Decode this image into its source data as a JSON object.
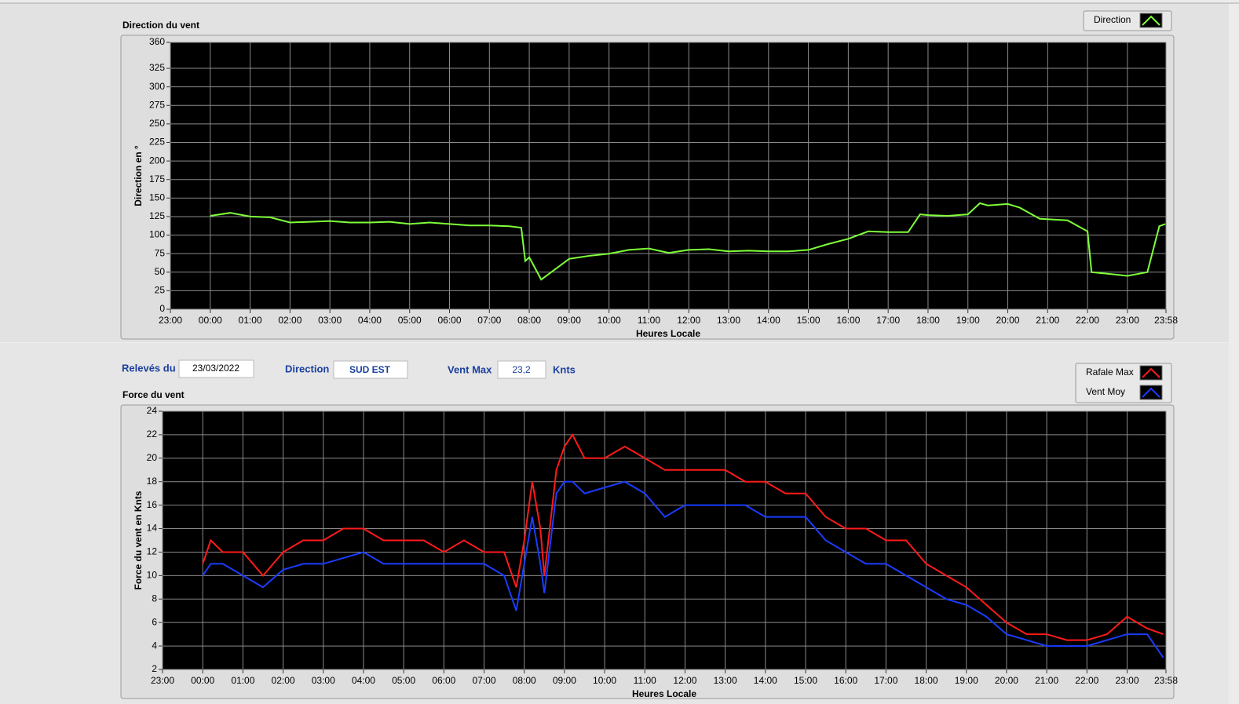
{
  "chart_data": [
    {
      "type": "line",
      "title": "Direction du vent",
      "xlabel": "Heures Locale",
      "ylabel": "Direction en °",
      "x": [
        0,
        0.5,
        1,
        1.5,
        2,
        2.5,
        3,
        3.5,
        4,
        4.5,
        5,
        5.5,
        6,
        6.5,
        7,
        7.5,
        7.8,
        7.9,
        8,
        8.3,
        8.5,
        9,
        9.5,
        10,
        10.5,
        11,
        11.5,
        12,
        12.5,
        13,
        13.5,
        14,
        14.5,
        15,
        15.5,
        16,
        16.5,
        17,
        17.5,
        17.8,
        18,
        18.5,
        19,
        19.3,
        19.5,
        20,
        20.3,
        20.8,
        21.5,
        22,
        22.1,
        22.5,
        23,
        23.5,
        23.8,
        23.95
      ],
      "series": [
        {
          "name": "Direction",
          "color": "#7fff3a",
          "values": [
            126,
            130,
            125,
            124,
            117,
            118,
            119,
            117,
            117,
            118,
            115,
            117,
            115,
            113,
            113,
            112,
            110,
            65,
            70,
            40,
            48,
            68,
            72,
            75,
            80,
            82,
            76,
            80,
            81,
            78,
            79,
            78,
            78,
            80,
            88,
            95,
            105,
            104,
            104,
            128,
            127,
            126,
            128,
            143,
            140,
            142,
            137,
            122,
            120,
            105,
            50,
            48,
            45,
            50,
            112,
            115
          ]
        }
      ],
      "xlim": [
        -1,
        23.967
      ],
      "xticks": [
        {
          "value": -1,
          "label": "23:00"
        },
        {
          "value": 0,
          "label": "00:00"
        },
        {
          "value": 1,
          "label": "01:00"
        },
        {
          "value": 2,
          "label": "02:00"
        },
        {
          "value": 3,
          "label": "03:00"
        },
        {
          "value": 4,
          "label": "04:00"
        },
        {
          "value": 5,
          "label": "05:00"
        },
        {
          "value": 6,
          "label": "06:00"
        },
        {
          "value": 7,
          "label": "07:00"
        },
        {
          "value": 8,
          "label": "08:00"
        },
        {
          "value": 9,
          "label": "09:00"
        },
        {
          "value": 10,
          "label": "10:00"
        },
        {
          "value": 11,
          "label": "11:00"
        },
        {
          "value": 12,
          "label": "12:00"
        },
        {
          "value": 13,
          "label": "13:00"
        },
        {
          "value": 14,
          "label": "14:00"
        },
        {
          "value": 15,
          "label": "15:00"
        },
        {
          "value": 16,
          "label": "16:00"
        },
        {
          "value": 17,
          "label": "17:00"
        },
        {
          "value": 18,
          "label": "18:00"
        },
        {
          "value": 19,
          "label": "19:00"
        },
        {
          "value": 20,
          "label": "20:00"
        },
        {
          "value": 21,
          "label": "21:00"
        },
        {
          "value": 22,
          "label": "22:00"
        },
        {
          "value": 23,
          "label": "23:00"
        },
        {
          "value": 23.967,
          "label": "23:58"
        }
      ],
      "ylim": [
        0,
        360
      ],
      "yticks": [
        0,
        25,
        50,
        75,
        100,
        125,
        150,
        175,
        200,
        225,
        250,
        275,
        300,
        325,
        360
      ],
      "grid": true
    },
    {
      "type": "line",
      "title": "Force du vent",
      "xlabel": "Heures Locale",
      "ylabel": "Force du vent en Knts",
      "x": [
        0,
        0.2,
        0.5,
        1,
        1.5,
        2,
        2.5,
        3,
        3.5,
        4,
        4.5,
        5,
        5.5,
        6,
        6.5,
        7,
        7.5,
        7.8,
        8,
        8.2,
        8.4,
        8.5,
        8.8,
        9,
        9.2,
        9.5,
        10,
        10.5,
        11,
        11.5,
        12,
        12.5,
        13,
        13.5,
        14,
        14.5,
        15,
        15.5,
        16,
        16.5,
        17,
        17.5,
        18,
        18.5,
        19,
        19.5,
        20,
        20.5,
        21,
        21.5,
        22,
        22.5,
        23,
        23.5,
        23.9
      ],
      "series": [
        {
          "name": "Rafale Max",
          "color": "#ff1a1a",
          "values": [
            11,
            13,
            12,
            12,
            10,
            12,
            13,
            13,
            14,
            14,
            13,
            13,
            13,
            12,
            13,
            12,
            12,
            9,
            13,
            18,
            14,
            10,
            19,
            21,
            22,
            20,
            20,
            21,
            20,
            19,
            19,
            19,
            19,
            18,
            18,
            17,
            17,
            15,
            14,
            14,
            13,
            13,
            11,
            10,
            9,
            7.5,
            6,
            5,
            5,
            4.5,
            4.5,
            5,
            6.5,
            5.5,
            5
          ]
        },
        {
          "name": "Vent Moy",
          "color": "#1a3cff",
          "values": [
            10,
            11,
            11,
            10,
            9,
            10.5,
            11,
            11,
            11.5,
            12,
            11,
            11,
            11,
            11,
            11,
            11,
            10,
            7,
            11,
            15,
            11,
            8.5,
            17,
            18,
            18,
            17,
            17.5,
            18,
            17,
            15,
            16,
            16,
            16,
            16,
            15,
            15,
            15,
            13,
            12,
            11,
            11,
            10,
            9,
            8,
            7.5,
            6.5,
            5,
            4.5,
            4,
            4,
            4,
            4.5,
            5,
            5,
            3
          ]
        }
      ],
      "xlim": [
        -1,
        23.967
      ],
      "xticks": [
        {
          "value": -1,
          "label": "23:00"
        },
        {
          "value": 0,
          "label": "00:00"
        },
        {
          "value": 1,
          "label": "01:00"
        },
        {
          "value": 2,
          "label": "02:00"
        },
        {
          "value": 3,
          "label": "03:00"
        },
        {
          "value": 4,
          "label": "04:00"
        },
        {
          "value": 5,
          "label": "05:00"
        },
        {
          "value": 6,
          "label": "06:00"
        },
        {
          "value": 7,
          "label": "07:00"
        },
        {
          "value": 8,
          "label": "08:00"
        },
        {
          "value": 9,
          "label": "09:00"
        },
        {
          "value": 10,
          "label": "10:00"
        },
        {
          "value": 11,
          "label": "11:00"
        },
        {
          "value": 12,
          "label": "12:00"
        },
        {
          "value": 13,
          "label": "13:00"
        },
        {
          "value": 14,
          "label": "14:00"
        },
        {
          "value": 15,
          "label": "15:00"
        },
        {
          "value": 16,
          "label": "16:00"
        },
        {
          "value": 17,
          "label": "17:00"
        },
        {
          "value": 18,
          "label": "18:00"
        },
        {
          "value": 19,
          "label": "19:00"
        },
        {
          "value": 20,
          "label": "20:00"
        },
        {
          "value": 21,
          "label": "21:00"
        },
        {
          "value": 22,
          "label": "22:00"
        },
        {
          "value": 23,
          "label": "23:00"
        },
        {
          "value": 23.967,
          "label": "23:58"
        }
      ],
      "ylim": [
        2,
        24
      ],
      "yticks": [
        2,
        4,
        6,
        8,
        10,
        12,
        14,
        16,
        18,
        20,
        22,
        24
      ],
      "grid": true
    }
  ],
  "readings": {
    "date_label": "Relevés du",
    "date": "23/03/2022",
    "direction_label": "Direction",
    "direction": "SUD EST",
    "max_label": "Vent Max",
    "max": "23,2",
    "unit": "Knts"
  }
}
